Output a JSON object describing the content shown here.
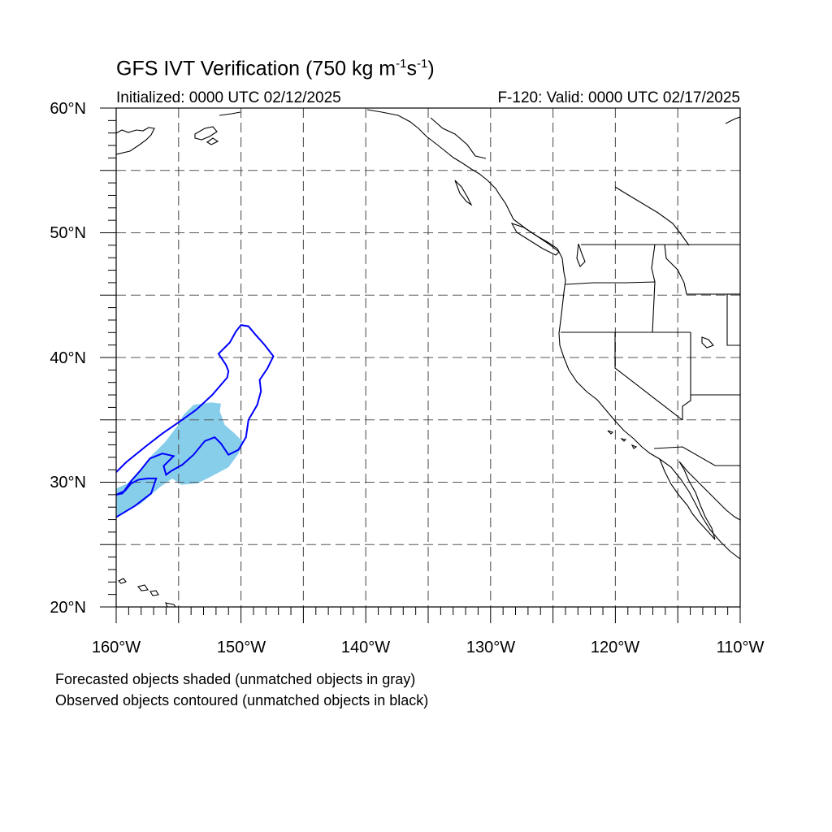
{
  "title": {
    "text": "GFS IVT Verification (750 kg m",
    "exp1": "-1",
    "mid": "s",
    "exp2": "-1",
    "end": ")"
  },
  "subtitle_left": "Initialized: 0000 UTC 02/12/2025",
  "subtitle_right": "F-120: Valid: 0000 UTC 02/17/2025",
  "lat_labels": [
    "60°N",
    "50°N",
    "40°N",
    "30°N",
    "20°N"
  ],
  "lon_labels": [
    "160°W",
    "150°W",
    "140°W",
    "130°W",
    "120°W",
    "110°W"
  ],
  "footnotes": [
    "Forecasted objects shaded (unmatched objects in gray)",
    "Observed objects contoured (unmatched objects in black)"
  ],
  "colors": {
    "forecast_fill": "#87ceeb",
    "observed_contour": "#0000ff",
    "coastline": "#000000",
    "grid": "#555555"
  },
  "chart_data": {
    "type": "map",
    "projection": "cylindrical-equidistant",
    "lon_range": [
      -160,
      -110
    ],
    "lat_range": [
      20,
      60
    ],
    "grid_spacing_deg": 5,
    "grid": true,
    "forecast_objects": [
      {
        "matched": true,
        "polygon_lonlat": [
          [
            -160,
            27.2
          ],
          [
            -158,
            28.3
          ],
          [
            -156.5,
            29.6
          ],
          [
            -155.5,
            30.3
          ],
          [
            -154.8,
            29.8
          ],
          [
            -153.5,
            29.9
          ],
          [
            -152.5,
            30.4
          ],
          [
            -151,
            31.2
          ],
          [
            -150.2,
            32.3
          ],
          [
            -149.8,
            33.2
          ],
          [
            -150.5,
            33.9
          ],
          [
            -151.3,
            34.6
          ],
          [
            -151.7,
            35.7
          ],
          [
            -151.6,
            36.3
          ],
          [
            -152.4,
            36.4
          ],
          [
            -153.8,
            36.2
          ],
          [
            -154.6,
            35.4
          ],
          [
            -155.1,
            34.5
          ],
          [
            -156.1,
            33.2
          ],
          [
            -157.2,
            32.1
          ],
          [
            -158.2,
            30.8
          ],
          [
            -159.1,
            29.9
          ],
          [
            -160,
            29.5
          ]
        ]
      }
    ],
    "observed_objects": [
      {
        "matched": true,
        "contour_lonlat": [
          [
            -160,
            30.8
          ],
          [
            -159.2,
            31.6
          ],
          [
            -157.6,
            32.9
          ],
          [
            -156.3,
            33.9
          ],
          [
            -155,
            34.8
          ],
          [
            -153.6,
            35.8
          ],
          [
            -152.3,
            37
          ],
          [
            -151.1,
            38.4
          ],
          [
            -151,
            38.9
          ],
          [
            -151.2,
            39.4
          ],
          [
            -151.8,
            40.3
          ],
          [
            -150.9,
            41.2
          ],
          [
            -150.4,
            42.1
          ],
          [
            -150,
            42.6
          ],
          [
            -149.4,
            42.5
          ],
          [
            -148.9,
            41.9
          ],
          [
            -148.1,
            41
          ],
          [
            -147.4,
            40.1
          ],
          [
            -147.9,
            39.1
          ],
          [
            -148.5,
            38.2
          ],
          [
            -148.4,
            37.3
          ],
          [
            -148.7,
            36.2
          ],
          [
            -149.4,
            35
          ],
          [
            -149.6,
            33.6
          ],
          [
            -150.2,
            32.6
          ],
          [
            -151,
            32.2
          ],
          [
            -151.6,
            33.1
          ],
          [
            -152.1,
            33.6
          ],
          [
            -152.9,
            33.3
          ],
          [
            -153.8,
            32.2
          ],
          [
            -154.7,
            31.4
          ],
          [
            -155.6,
            30.9
          ],
          [
            -156,
            30.6
          ],
          [
            -156.2,
            31.3
          ],
          [
            -155.4,
            32.1
          ],
          [
            -156.3,
            32.3
          ],
          [
            -157.3,
            31.9
          ],
          [
            -158.1,
            30.9
          ],
          [
            -158.8,
            30.1
          ],
          [
            -159.5,
            29.1
          ],
          [
            -160,
            29
          ]
        ]
      },
      {
        "matched": true,
        "contour_lonlat": [
          [
            -160,
            27.2
          ],
          [
            -158.5,
            28.1
          ],
          [
            -157.2,
            29.1
          ],
          [
            -156.8,
            30.3
          ],
          [
            -157.5,
            30.3
          ],
          [
            -158.2,
            30.2
          ],
          [
            -158.8,
            29.9
          ],
          [
            -159.3,
            29.3
          ],
          [
            -160,
            29
          ]
        ]
      }
    ]
  }
}
